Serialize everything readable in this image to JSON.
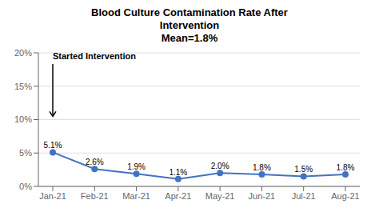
{
  "chart_data": {
    "type": "line",
    "title": "Blood Culture Contamination Rate After\nIntervention\nMean=1.8%",
    "categories": [
      "Jan-21",
      "Feb-21",
      "Mar-21",
      "Apr-21",
      "May-21",
      "Jun-21",
      "Jul-21",
      "Aug-21"
    ],
    "values": [
      5.1,
      2.6,
      1.9,
      1.1,
      2.0,
      1.8,
      1.5,
      1.8
    ],
    "value_labels": [
      "5.1%",
      "2.6%",
      "1.9%",
      "1.1%",
      "2.0%",
      "1.8%",
      "1.5%",
      "1.8%"
    ],
    "color": "#4472C4",
    "marker": "circle",
    "ylim": [
      0,
      20
    ],
    "yticks": [
      {
        "value": 0,
        "label": "0%"
      },
      {
        "value": 5,
        "label": "5%"
      },
      {
        "value": 10,
        "label": "10%"
      },
      {
        "value": 15,
        "label": "15%"
      },
      {
        "value": 20,
        "label": "20%"
      }
    ],
    "grid": true,
    "data_labels": true,
    "annotations": [
      {
        "text": "Started Intervention",
        "x": "Jan-21",
        "y": 20,
        "arrow_to": 10.5
      }
    ]
  }
}
